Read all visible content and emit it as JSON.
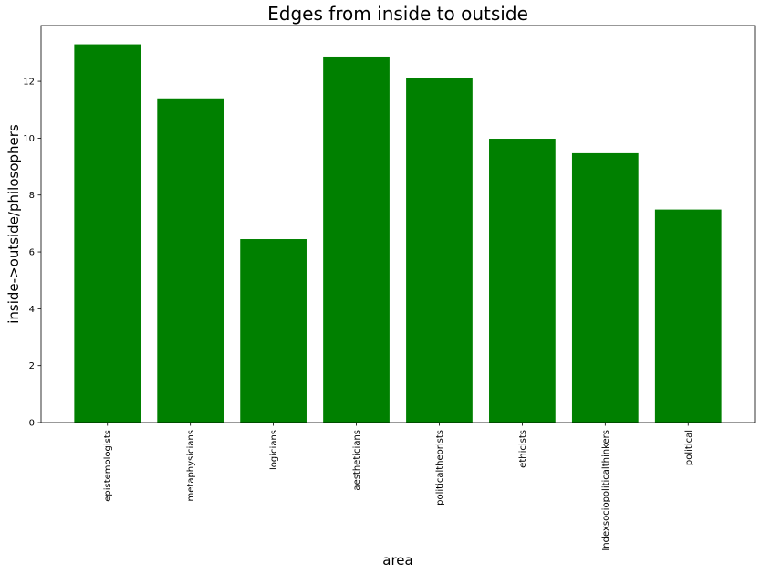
{
  "chart_data": {
    "type": "bar",
    "title": "Edges from inside to outside",
    "xlabel": "area",
    "ylabel": "inside->outside/philosophers",
    "categories": [
      "epistemologists",
      "metaphysicians",
      "logicians",
      "aestheticians",
      "politicaltheorists",
      "ethicists",
      "Indexsociopoliticalthinkers",
      "political"
    ],
    "values": [
      13.3,
      11.4,
      6.45,
      12.87,
      12.12,
      9.98,
      9.47,
      7.49
    ],
    "ylim": [
      0,
      13.96
    ],
    "yticks": [
      "0",
      "2",
      "4",
      "6",
      "8",
      "10",
      "12"
    ],
    "bar_color": "#008000",
    "grid": false,
    "legend": "none"
  }
}
